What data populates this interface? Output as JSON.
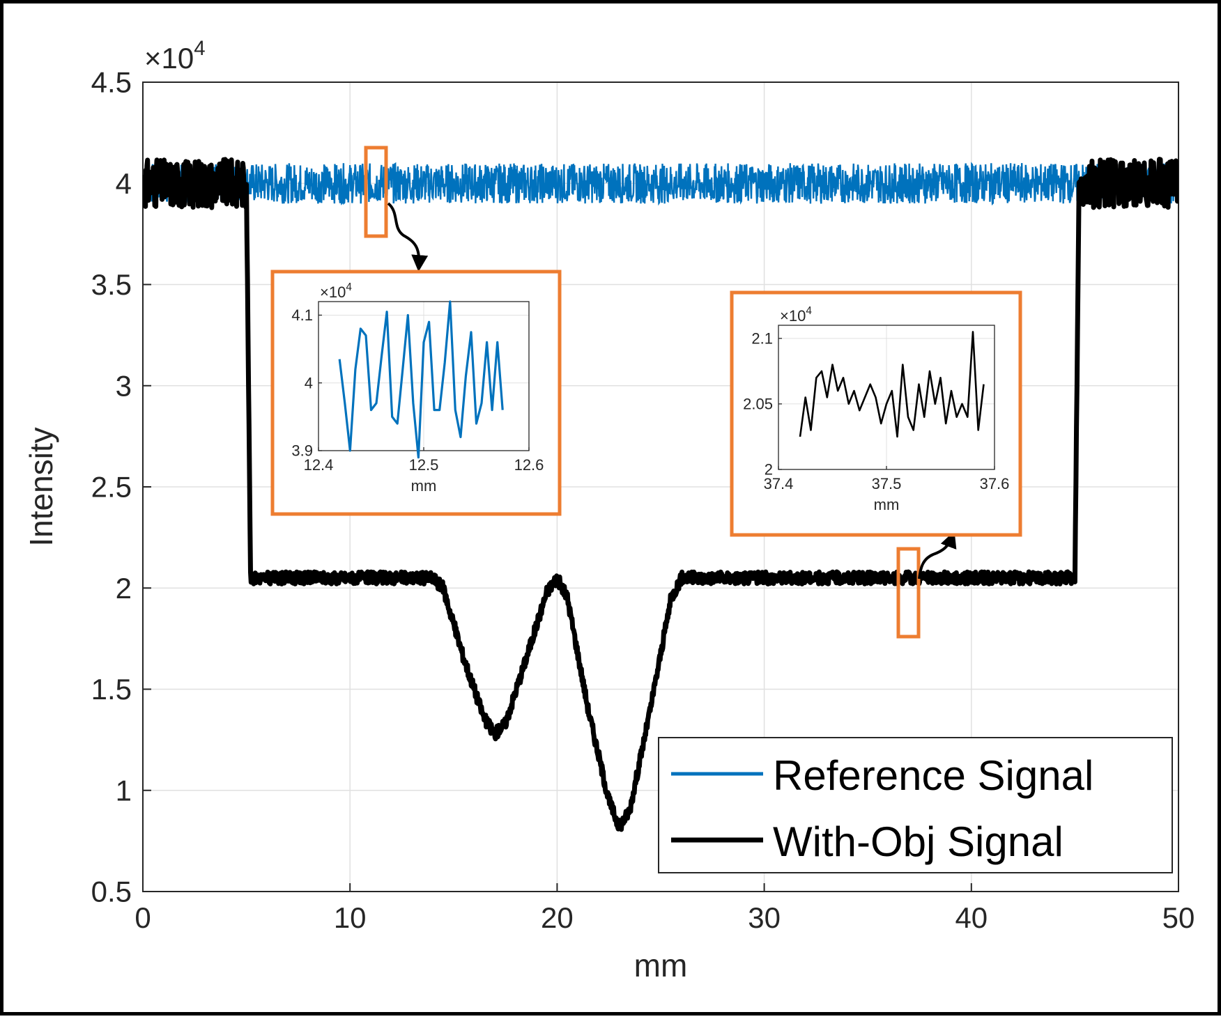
{
  "chart_data": [
    {
      "id": "main",
      "type": "line",
      "title": "",
      "xlabel": "mm",
      "ylabel": "Intensity",
      "y_multiplier": "×10",
      "y_exponent": "4",
      "xlim": [
        0,
        50
      ],
      "ylim": [
        0.5,
        4.5
      ],
      "xticks": [
        0,
        10,
        20,
        30,
        40,
        50
      ],
      "xtick_labels": [
        "0",
        "10",
        "20",
        "30",
        "40",
        "50"
      ],
      "yticks": [
        0.5,
        1,
        1.5,
        2,
        2.5,
        3,
        3.5,
        4,
        4.5
      ],
      "ytick_labels": [
        "0.5",
        "1",
        "1.5",
        "2",
        "2.5",
        "3",
        "3.5",
        "4",
        "4.5"
      ],
      "grid": true,
      "legend_position": "bottom-right",
      "series": [
        {
          "name": "Reference Signal",
          "color": "#0072BD",
          "x": [
            0,
            50
          ],
          "y": [
            4.0,
            4.0
          ],
          "noise_band": [
            3.9,
            4.1
          ]
        },
        {
          "name": "With-Obj Signal",
          "color": "#000000",
          "x": [
            0,
            5,
            5.2,
            14,
            14.5,
            15.5,
            16.5,
            17,
            17.5,
            18.5,
            19.5,
            20,
            20.5,
            21.5,
            22.5,
            23,
            23.5,
            24.5,
            25.5,
            26,
            45,
            45.2,
            50
          ],
          "y": [
            4.0,
            4.0,
            2.05,
            2.05,
            2.0,
            1.65,
            1.35,
            1.28,
            1.33,
            1.65,
            1.98,
            2.05,
            1.95,
            1.4,
            0.95,
            0.82,
            0.9,
            1.4,
            1.95,
            2.05,
            2.05,
            4.0,
            4.0
          ],
          "noise_band_amplitude": 0.12
        }
      ]
    },
    {
      "id": "inset-left",
      "type": "line",
      "xlabel": "mm",
      "ylabel": "",
      "y_multiplier": "×10",
      "y_exponent": "4",
      "xlim": [
        12.4,
        12.6
      ],
      "ylim": [
        3.9,
        4.12
      ],
      "xticks": [
        12.4,
        12.5,
        12.6
      ],
      "xtick_labels": [
        "12.4",
        "12.5",
        "12.6"
      ],
      "yticks": [
        3.9,
        4.0,
        4.1
      ],
      "ytick_labels": [
        "3.9",
        "4",
        "4.1"
      ],
      "grid": true,
      "series": [
        {
          "name": "Reference Signal",
          "color": "#0072BD",
          "x": [
            12.42,
            12.425,
            12.43,
            12.435,
            12.44,
            12.445,
            12.45,
            12.455,
            12.46,
            12.465,
            12.47,
            12.475,
            12.48,
            12.485,
            12.49,
            12.495,
            12.5,
            12.505,
            12.51,
            12.515,
            12.52,
            12.525,
            12.53,
            12.535,
            12.54,
            12.545,
            12.55,
            12.555,
            12.56,
            12.565,
            12.57,
            12.575
          ],
          "y": [
            4.035,
            3.97,
            3.9,
            4.02,
            4.08,
            4.07,
            3.96,
            3.97,
            4.04,
            4.105,
            3.95,
            3.94,
            4.02,
            4.1,
            3.97,
            3.89,
            4.06,
            4.09,
            3.96,
            3.96,
            4.03,
            4.12,
            3.96,
            3.92,
            4.01,
            4.075,
            3.94,
            3.97,
            4.06,
            3.96,
            4.06,
            3.96
          ]
        }
      ]
    },
    {
      "id": "inset-right",
      "type": "line",
      "xlabel": "mm",
      "ylabel": "",
      "y_multiplier": "×10",
      "y_exponent": "4",
      "xlim": [
        37.4,
        37.6
      ],
      "ylim": [
        2.0,
        2.11
      ],
      "xticks": [
        37.4,
        37.5,
        37.6
      ],
      "xtick_labels": [
        "37.4",
        "37.5",
        "37.6"
      ],
      "yticks": [
        2.0,
        2.05,
        2.1
      ],
      "ytick_labels": [
        "2",
        "2.05",
        "2.1"
      ],
      "grid": true,
      "series": [
        {
          "name": "With-Obj Signal",
          "color": "#000000",
          "x": [
            37.42,
            37.425,
            37.43,
            37.435,
            37.44,
            37.445,
            37.45,
            37.455,
            37.46,
            37.465,
            37.47,
            37.475,
            37.48,
            37.485,
            37.49,
            37.495,
            37.5,
            37.505,
            37.51,
            37.515,
            37.52,
            37.525,
            37.53,
            37.535,
            37.54,
            37.545,
            37.55,
            37.555,
            37.56,
            37.565,
            37.57,
            37.575,
            37.58,
            37.585,
            37.59
          ],
          "y": [
            2.025,
            2.055,
            2.03,
            2.07,
            2.075,
            2.055,
            2.08,
            2.06,
            2.07,
            2.05,
            2.06,
            2.045,
            2.055,
            2.065,
            2.055,
            2.035,
            2.05,
            2.06,
            2.025,
            2.08,
            2.04,
            2.03,
            2.065,
            2.04,
            2.075,
            2.05,
            2.07,
            2.035,
            2.06,
            2.04,
            2.05,
            2.04,
            2.105,
            2.03,
            2.065
          ]
        }
      ]
    }
  ],
  "colors": {
    "highlight_box": "#ED7D31",
    "grid": "#E0E0E0",
    "axis": "#262626"
  }
}
